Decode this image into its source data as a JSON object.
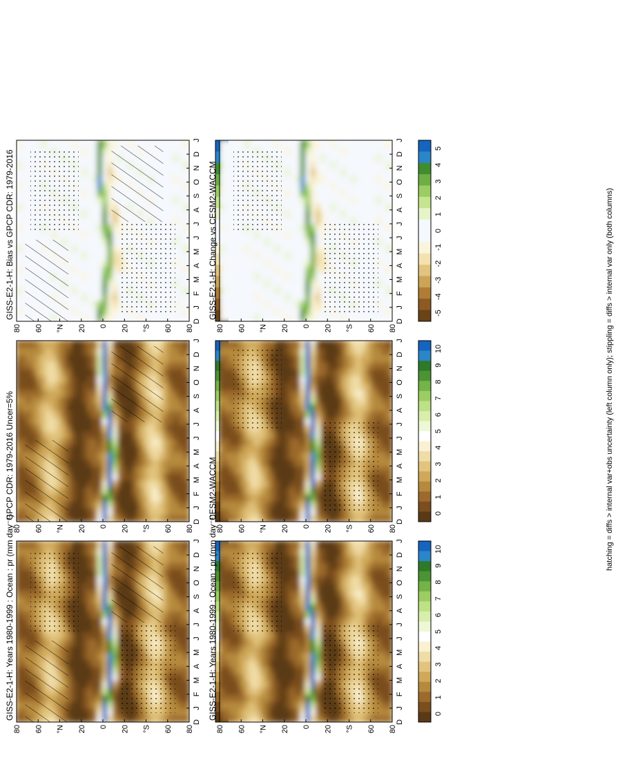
{
  "footer": "hatching = diffs > internal var+obs uncertainty (left column only); stippling = diffs > internal var only (both columns)",
  "chart_data": [
    {
      "type": "heatmap",
      "title": "GISS-E2-1-H: Years 1980-1999 : Ocean : pr (mm day⁻¹)",
      "x_ticks": [
        "D",
        "J",
        "F",
        "M",
        "A",
        "M",
        "J",
        "J",
        "A",
        "S",
        "O",
        "N",
        "D",
        "J"
      ],
      "y_ticks": [
        "80",
        "60",
        "°N",
        "20",
        "0",
        "20",
        "°S",
        "60",
        "80"
      ],
      "colorbar": [
        "0",
        "1",
        "2",
        "3",
        "4",
        "5",
        "6",
        "7",
        "8",
        "9",
        "10"
      ],
      "field": "clim",
      "overlay": [
        "hatch",
        "stipple"
      ]
    },
    {
      "type": "heatmap",
      "title": "GISS-E2-1-H: Years 1980-1999 : Ocean : pr (mm day⁻¹)",
      "x_ticks": [
        "D",
        "J",
        "F",
        "M",
        "A",
        "M",
        "J",
        "J",
        "A",
        "S",
        "O",
        "N",
        "D",
        "J"
      ],
      "y_ticks": [
        "80",
        "60",
        "°N",
        "20",
        "0",
        "20",
        "°S",
        "60",
        "80"
      ],
      "colorbar": [
        "0",
        "1",
        "2",
        "3",
        "4",
        "5",
        "6",
        "7",
        "8",
        "9",
        "10"
      ],
      "field": "clim",
      "overlay": [
        "stipple"
      ]
    },
    {
      "type": "heatmap",
      "title": "GPCP CDR: 1979-2016 Uncer=5%",
      "x_ticks": [
        "D",
        "J",
        "F",
        "M",
        "A",
        "M",
        "J",
        "J",
        "A",
        "S",
        "O",
        "N",
        "D",
        "J"
      ],
      "y_ticks": [
        "80",
        "60",
        "°N",
        "20",
        "0",
        "20",
        "°S",
        "60",
        "80"
      ],
      "colorbar": [
        "0",
        "1",
        "2",
        "3",
        "4",
        "5",
        "6",
        "7",
        "8",
        "9",
        "10"
      ],
      "field": "clim",
      "overlay": [
        "hatch"
      ]
    },
    {
      "type": "heatmap",
      "title": "CESM2-WACCM",
      "x_ticks": [
        "D",
        "J",
        "F",
        "M",
        "A",
        "M",
        "J",
        "J",
        "A",
        "S",
        "O",
        "N",
        "D",
        "J"
      ],
      "y_ticks": [
        "80",
        "60",
        "°N",
        "20",
        "0",
        "20",
        "°S",
        "60",
        "80"
      ],
      "colorbar": [
        "0",
        "1",
        "2",
        "3",
        "4",
        "5",
        "6",
        "7",
        "8",
        "9",
        "10"
      ],
      "field": "clim",
      "overlay": [
        "stipple"
      ]
    },
    {
      "type": "heatmap",
      "title": "GISS-E2-1-H: Bias vs GPCP CDR: 1979-2016",
      "x_ticks": [
        "D",
        "J",
        "F",
        "M",
        "A",
        "M",
        "J",
        "J",
        "A",
        "S",
        "O",
        "N",
        "D",
        "J"
      ],
      "y_ticks": [
        "80",
        "60",
        "°N",
        "20",
        "0",
        "20",
        "°S",
        "60",
        "80"
      ],
      "colorbar": [
        "-5",
        "-4",
        "-3",
        "-2",
        "-1",
        "0",
        "1",
        "2",
        "3",
        "4",
        "5"
      ],
      "field": "diff",
      "overlay": [
        "hatch",
        "stipple"
      ]
    },
    {
      "type": "heatmap",
      "title": "GISS-E2-1-H: Change vs CESM2-WACCM",
      "x_ticks": [
        "D",
        "J",
        "F",
        "M",
        "A",
        "M",
        "J",
        "J",
        "A",
        "S",
        "O",
        "N",
        "D",
        "J"
      ],
      "y_ticks": [
        "80",
        "60",
        "°N",
        "20",
        "0",
        "20",
        "°S",
        "60",
        "80"
      ],
      "colorbar": [
        "-5",
        "-4",
        "-3",
        "-2",
        "-1",
        "0",
        "1",
        "2",
        "3",
        "4",
        "5"
      ],
      "field": "diff",
      "overlay": [
        "stipple"
      ]
    }
  ],
  "palettes": {
    "clim": [
      "#5a3a16",
      "#7a4e1e",
      "#9b6a2c",
      "#b68a3e",
      "#cfa85a",
      "#e2c47e",
      "#f0dca6",
      "#faf1d2",
      "#ffffff",
      "#eef7d6",
      "#d8eeaa",
      "#bde185",
      "#9ccd62",
      "#73b347",
      "#4b9433",
      "#2e7a2a",
      "#2b86c9",
      "#1565c0"
    ],
    "diff": [
      "#6a4318",
      "#8c5a22",
      "#b07d36",
      "#cca456",
      "#e2c47e",
      "#f3e2b0",
      "#fbf4dc",
      "#f5f8fc",
      "#f5f8fc",
      "#e7f3c9",
      "#c6e590",
      "#9ccd62",
      "#6fae45",
      "#3f8d2f",
      "#2b86c9",
      "#1565c0"
    ]
  }
}
